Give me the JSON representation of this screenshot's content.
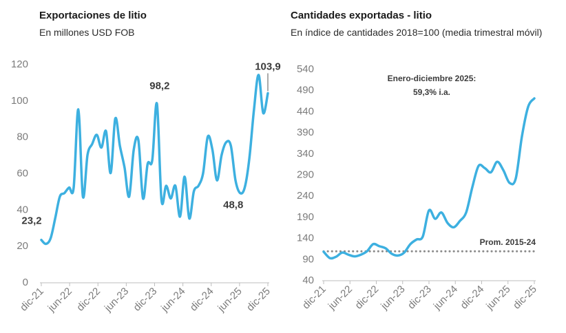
{
  "colors": {
    "line": "#3db0e0",
    "axis": "#bdbdbd",
    "tick_text": "#7b7b7b",
    "reference": "#8a8a8a"
  },
  "chart_data": [
    {
      "type": "line",
      "title": "Exportaciones de litio",
      "subtitle": "En millones USD FOB",
      "xlabel": "",
      "ylabel": "",
      "ylim": [
        0,
        120
      ],
      "y_ticks": [
        "0",
        "20",
        "40",
        "60",
        "80",
        "100",
        "120"
      ],
      "x_ticks": [
        "dic-21",
        "jun-22",
        "dic-22",
        "jun-23",
        "dic-23",
        "jun-24",
        "dic-24",
        "jun-25",
        "dic-25"
      ],
      "grid": false,
      "series": [
        {
          "values": [
            23.2,
            21,
            24,
            35,
            47,
            49,
            52,
            52,
            95,
            47,
            70,
            76,
            81,
            74,
            83,
            60,
            90,
            75,
            63,
            47,
            73,
            78,
            46,
            65,
            67,
            98.2,
            45,
            53,
            46,
            53,
            36,
            58,
            35,
            50,
            53,
            60,
            80,
            73,
            56,
            70,
            77,
            75,
            56,
            49,
            52,
            68,
            95,
            114,
            93,
            103.9
          ]
        }
      ],
      "annotations": [
        {
          "text": "23,2",
          "index": 0
        },
        {
          "text": "98,2",
          "index": 25
        },
        {
          "text": "48,8",
          "index": 43
        },
        {
          "text": "103,9",
          "index": 49
        }
      ]
    },
    {
      "type": "line",
      "title": "Cantidades exportadas - litio",
      "subtitle": "En índice de cantidades 2018=100 (media trimestral móvil)",
      "xlabel": "",
      "ylabel": "",
      "ylim": [
        40,
        540
      ],
      "y_ticks": [
        "40",
        "90",
        "140",
        "190",
        "240",
        "290",
        "340",
        "390",
        "440",
        "490",
        "540"
      ],
      "x_ticks": [
        "dic-21",
        "jun-22",
        "dic-22",
        "jun-23",
        "dic-23",
        "jun-24",
        "dic-24",
        "jun-25",
        "dic-25"
      ],
      "grid": false,
      "series": [
        {
          "values": [
            107,
            92,
            95,
            105,
            100,
            96,
            100,
            108,
            125,
            120,
            115,
            102,
            98,
            105,
            125,
            136,
            143,
            205,
            185,
            200,
            175,
            165,
            180,
            200,
            260,
            310,
            305,
            295,
            320,
            300,
            270,
            280,
            380,
            450,
            470
          ]
        }
      ],
      "reference_line": {
        "label": "Prom. 2015-24",
        "value": 108
      },
      "annotations": [
        {
          "text": "Enero-diciembre 2025:"
        },
        {
          "text": "59,3% i.a."
        }
      ]
    }
  ]
}
